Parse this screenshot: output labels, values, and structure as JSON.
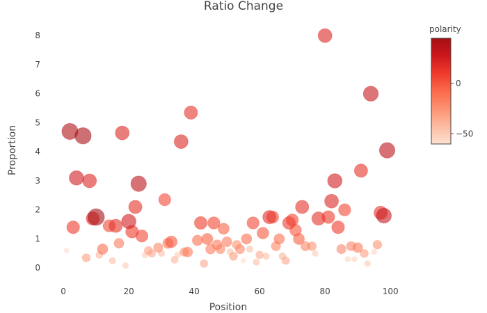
{
  "chart_data": {
    "type": "scatter",
    "title": "Ratio Change",
    "xlabel": "Position",
    "ylabel": "Proportion",
    "xlim": [
      -3,
      104
    ],
    "ylim": [
      -0.45,
      8.7
    ],
    "x_ticks": [
      0,
      20,
      40,
      60,
      80,
      100
    ],
    "y_ticks": [
      0,
      1,
      2,
      3,
      4,
      5,
      6,
      7,
      8
    ],
    "grid": false,
    "colorbar": {
      "title": "polarity",
      "range": [
        -60,
        45
      ],
      "ticks": [
        0,
        -50
      ],
      "colors": [
        "#fde0d2",
        "#fcbba1",
        "#fc9272",
        "#fb6a4a",
        "#ef3b2c",
        "#cb181d",
        "#a50f15"
      ]
    },
    "points": [
      {
        "x": 1,
        "y": 0.6,
        "polarity": -58
      },
      {
        "x": 2,
        "y": 4.7,
        "polarity": 40
      },
      {
        "x": 3,
        "y": 1.4,
        "polarity": 10
      },
      {
        "x": 4,
        "y": 3.1,
        "polarity": 25
      },
      {
        "x": 6,
        "y": 4.55,
        "polarity": 42
      },
      {
        "x": 7,
        "y": 0.35,
        "polarity": -30
      },
      {
        "x": 8,
        "y": 3.0,
        "polarity": 20
      },
      {
        "x": 9,
        "y": 1.7,
        "polarity": 15
      },
      {
        "x": 10,
        "y": 1.75,
        "polarity": 45
      },
      {
        "x": 11,
        "y": 0.45,
        "polarity": -40
      },
      {
        "x": 12,
        "y": 0.65,
        "polarity": -10
      },
      {
        "x": 14,
        "y": 1.45,
        "polarity": 5
      },
      {
        "x": 15,
        "y": 0.25,
        "polarity": -45
      },
      {
        "x": 16,
        "y": 1.45,
        "polarity": 15
      },
      {
        "x": 17,
        "y": 0.85,
        "polarity": -15
      },
      {
        "x": 18,
        "y": 4.65,
        "polarity": 20
      },
      {
        "x": 19,
        "y": 0.08,
        "polarity": -50
      },
      {
        "x": 20,
        "y": 1.6,
        "polarity": 25
      },
      {
        "x": 21,
        "y": 1.25,
        "polarity": 10
      },
      {
        "x": 22,
        "y": 2.1,
        "polarity": 15
      },
      {
        "x": 23,
        "y": 2.9,
        "polarity": 35
      },
      {
        "x": 24,
        "y": 1.1,
        "polarity": 5
      },
      {
        "x": 25,
        "y": 0.45,
        "polarity": -50
      },
      {
        "x": 26,
        "y": 0.6,
        "polarity": -30
      },
      {
        "x": 27,
        "y": 0.5,
        "polarity": -35
      },
      {
        "x": 29,
        "y": 0.7,
        "polarity": -20
      },
      {
        "x": 30,
        "y": 0.5,
        "polarity": -45
      },
      {
        "x": 31,
        "y": 2.35,
        "polarity": 5
      },
      {
        "x": 32,
        "y": 0.85,
        "polarity": -10
      },
      {
        "x": 33,
        "y": 0.9,
        "polarity": 0
      },
      {
        "x": 34,
        "y": 0.28,
        "polarity": -40
      },
      {
        "x": 35,
        "y": 0.45,
        "polarity": -50
      },
      {
        "x": 36,
        "y": 4.35,
        "polarity": 20
      },
      {
        "x": 37,
        "y": 0.55,
        "polarity": -25
      },
      {
        "x": 38,
        "y": 0.55,
        "polarity": -15
      },
      {
        "x": 39,
        "y": 5.35,
        "polarity": 15
      },
      {
        "x": 41,
        "y": 0.95,
        "polarity": -10
      },
      {
        "x": 42,
        "y": 1.55,
        "polarity": 10
      },
      {
        "x": 43,
        "y": 0.15,
        "polarity": -35
      },
      {
        "x": 44,
        "y": 1.0,
        "polarity": -5
      },
      {
        "x": 45,
        "y": 0.65,
        "polarity": -15
      },
      {
        "x": 46,
        "y": 1.55,
        "polarity": 5
      },
      {
        "x": 47,
        "y": 0.8,
        "polarity": -15
      },
      {
        "x": 48,
        "y": 0.65,
        "polarity": -20
      },
      {
        "x": 49,
        "y": 1.35,
        "polarity": -5
      },
      {
        "x": 50,
        "y": 0.9,
        "polarity": -15
      },
      {
        "x": 51,
        "y": 0.55,
        "polarity": -45
      },
      {
        "x": 52,
        "y": 0.4,
        "polarity": -30
      },
      {
        "x": 53,
        "y": 0.8,
        "polarity": -25
      },
      {
        "x": 54,
        "y": 0.65,
        "polarity": -20
      },
      {
        "x": 55,
        "y": 0.25,
        "polarity": -60
      },
      {
        "x": 56,
        "y": 1.0,
        "polarity": -10
      },
      {
        "x": 57,
        "y": 0.65,
        "polarity": -45
      },
      {
        "x": 58,
        "y": 1.55,
        "polarity": 5
      },
      {
        "x": 59,
        "y": 0.2,
        "polarity": -45
      },
      {
        "x": 60,
        "y": 0.45,
        "polarity": -35
      },
      {
        "x": 61,
        "y": 1.2,
        "polarity": 0
      },
      {
        "x": 62,
        "y": 0.4,
        "polarity": -45
      },
      {
        "x": 63,
        "y": 1.75,
        "polarity": 15
      },
      {
        "x": 64,
        "y": 1.75,
        "polarity": 5
      },
      {
        "x": 65,
        "y": 0.75,
        "polarity": -20
      },
      {
        "x": 66,
        "y": 1.0,
        "polarity": -10
      },
      {
        "x": 67,
        "y": 0.4,
        "polarity": -40
      },
      {
        "x": 68,
        "y": 0.25,
        "polarity": -35
      },
      {
        "x": 69,
        "y": 1.55,
        "polarity": 10
      },
      {
        "x": 70,
        "y": 1.65,
        "polarity": 5
      },
      {
        "x": 71,
        "y": 1.3,
        "polarity": 0
      },
      {
        "x": 72,
        "y": 1.0,
        "polarity": -5
      },
      {
        "x": 73,
        "y": 2.1,
        "polarity": 15
      },
      {
        "x": 74,
        "y": 0.75,
        "polarity": -20
      },
      {
        "x": 76,
        "y": 0.75,
        "polarity": -25
      },
      {
        "x": 77,
        "y": 0.5,
        "polarity": -50
      },
      {
        "x": 78,
        "y": 1.7,
        "polarity": 15
      },
      {
        "x": 80,
        "y": 8.0,
        "polarity": 20
      },
      {
        "x": 81,
        "y": 1.75,
        "polarity": 10
      },
      {
        "x": 82,
        "y": 2.3,
        "polarity": 20
      },
      {
        "x": 83,
        "y": 3.0,
        "polarity": 25
      },
      {
        "x": 84,
        "y": 1.4,
        "polarity": 10
      },
      {
        "x": 85,
        "y": 0.65,
        "polarity": -20
      },
      {
        "x": 86,
        "y": 2.0,
        "polarity": 5
      },
      {
        "x": 87,
        "y": 0.3,
        "polarity": -55
      },
      {
        "x": 88,
        "y": 0.75,
        "polarity": -20
      },
      {
        "x": 89,
        "y": 0.3,
        "polarity": -55
      },
      {
        "x": 90,
        "y": 0.7,
        "polarity": -15
      },
      {
        "x": 91,
        "y": 3.35,
        "polarity": 15
      },
      {
        "x": 92,
        "y": 0.5,
        "polarity": -30
      },
      {
        "x": 93,
        "y": 0.15,
        "polarity": -50
      },
      {
        "x": 94,
        "y": 6.0,
        "polarity": 30
      },
      {
        "x": 95,
        "y": 0.55,
        "polarity": -55
      },
      {
        "x": 96,
        "y": 0.8,
        "polarity": -25
      },
      {
        "x": 97,
        "y": 1.9,
        "polarity": 15
      },
      {
        "x": 98,
        "y": 1.8,
        "polarity": 30
      },
      {
        "x": 99,
        "y": 4.05,
        "polarity": 35
      }
    ]
  }
}
